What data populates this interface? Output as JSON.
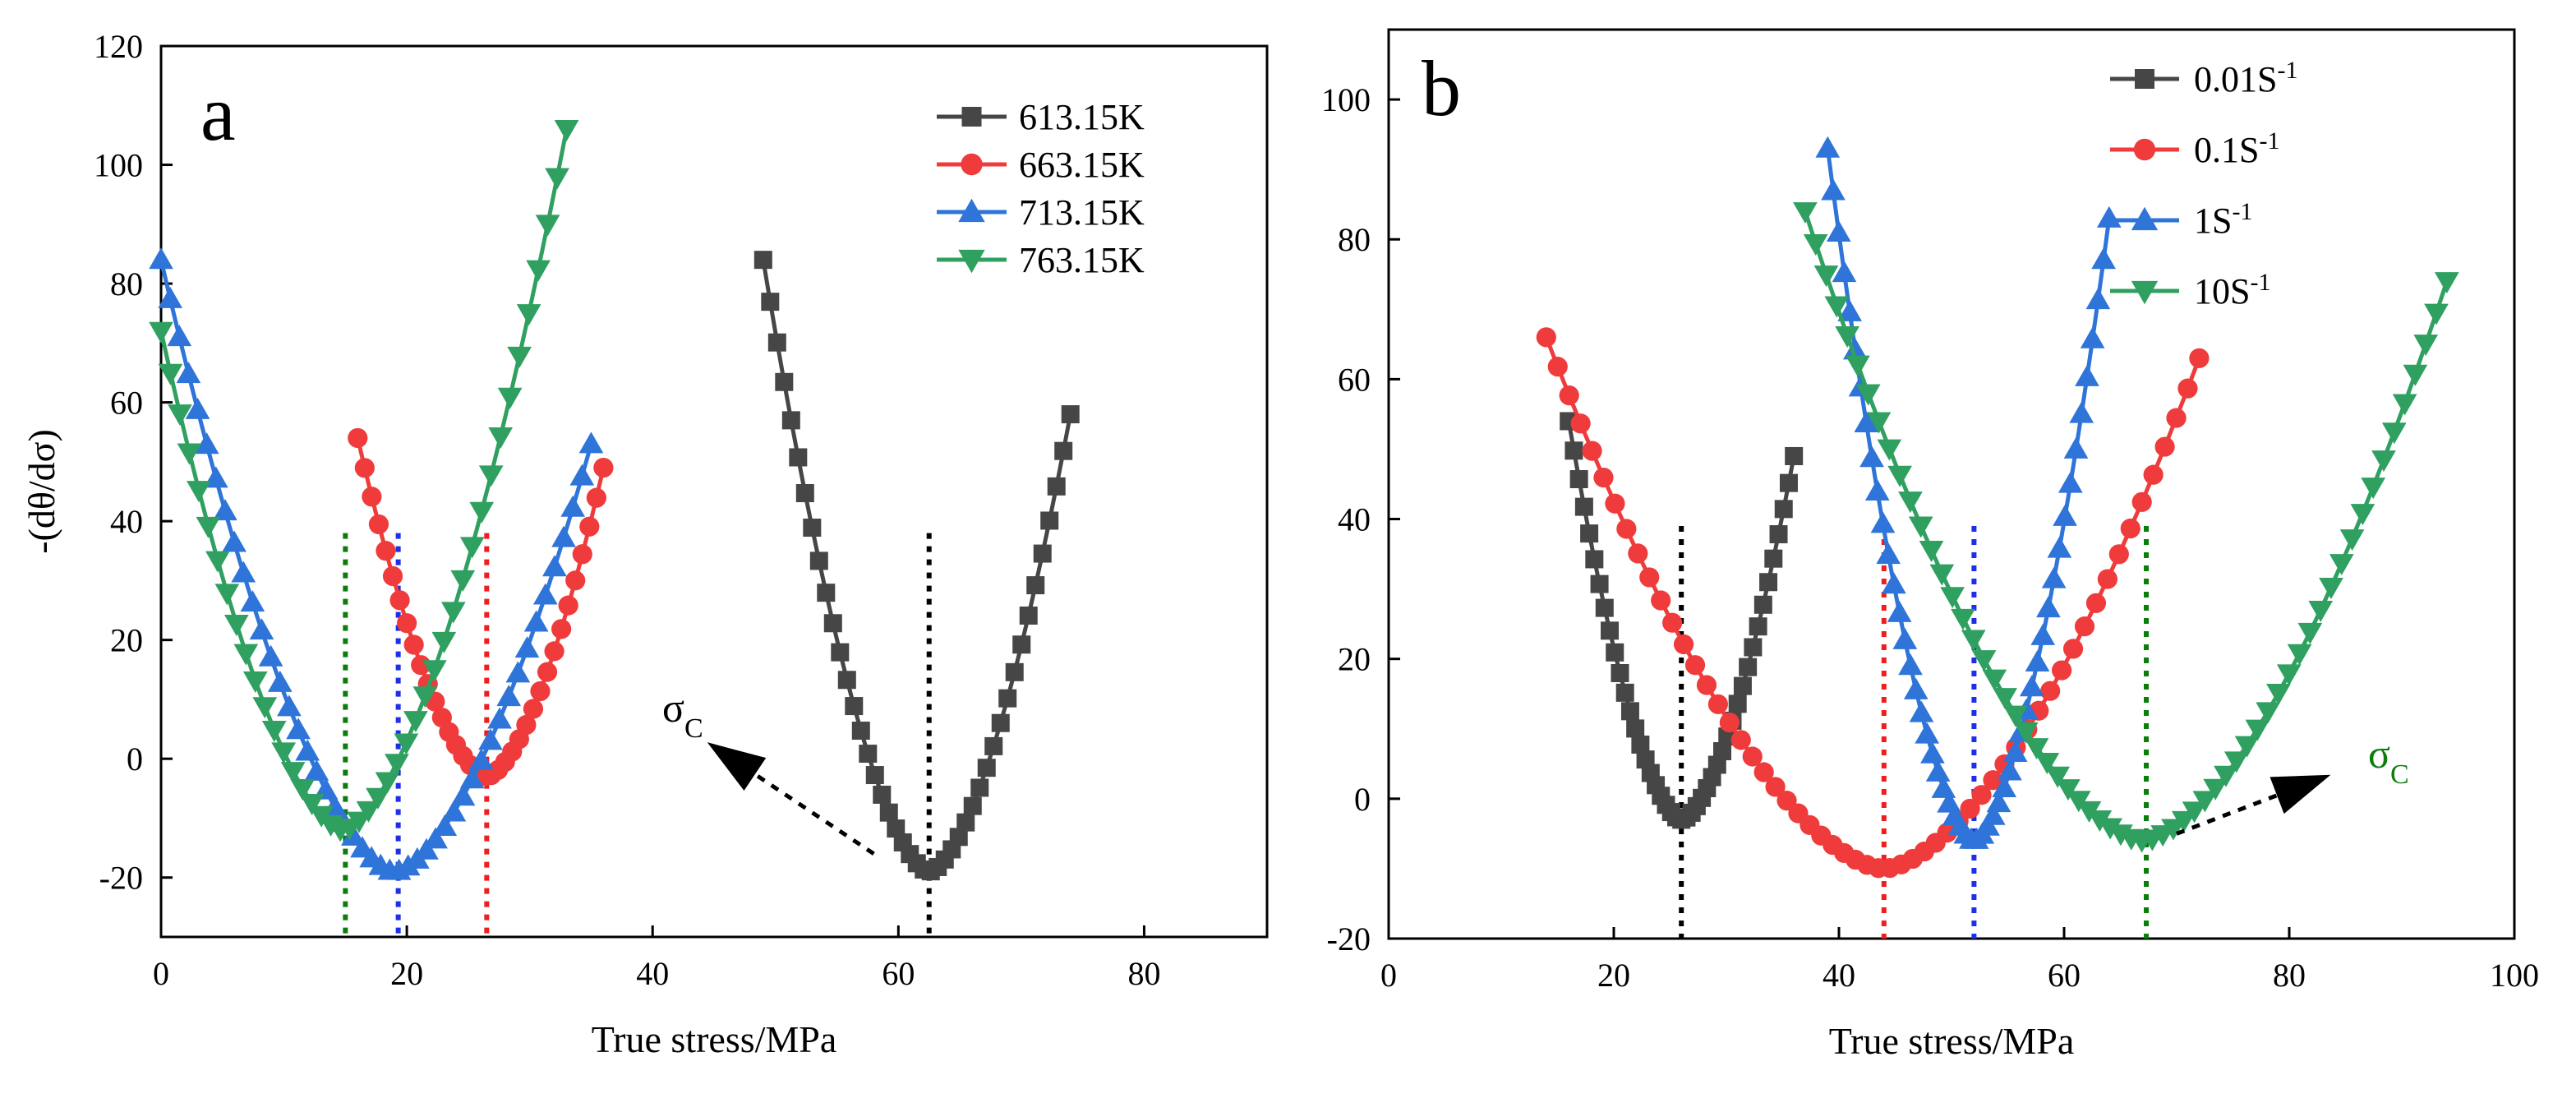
{
  "chart_data": [
    {
      "panel": "a",
      "type": "scatter",
      "title": "",
      "xlabel": "True stress/MPa",
      "ylabel": "-(dθ/dσ)",
      "xlim": [
        0,
        90
      ],
      "ylim": [
        -30,
        120
      ],
      "xticks": [
        0,
        20,
        40,
        60,
        80
      ],
      "yticks": [
        -20,
        0,
        20,
        40,
        60,
        80,
        100,
        120
      ],
      "grid": false,
      "legend_position": "top-right",
      "series": [
        {
          "name": "613.15K",
          "color": "#464646",
          "marker": "square",
          "xmin": 49,
          "xmax": 74,
          "xc": 62.5,
          "ymin": -19,
          "yleft": 84,
          "yright": 58,
          "n": 45
        },
        {
          "name": "663.15K",
          "color": "#ef3b3b",
          "marker": "circle",
          "xmin": 16,
          "xmax": 36,
          "xc": 26.5,
          "ymin": -3,
          "yleft": 54,
          "yright": 49,
          "n": 36
        },
        {
          "name": "713.15K",
          "color": "#2e74d9",
          "marker": "triangle-up",
          "xmin": 0,
          "xmax": 35,
          "xc": 19,
          "ymin": -19,
          "yleft": 84,
          "yright": 53,
          "n": 48
        },
        {
          "name": "763.15K",
          "color": "#2fa060",
          "marker": "triangle-down",
          "xmin": 0,
          "xmax": 33,
          "xc": 14.8,
          "ymin": -12,
          "yleft": 72,
          "yright": 106,
          "n": 44
        }
      ],
      "vlines": [
        {
          "x": 15,
          "color": "#0b7d0b"
        },
        {
          "x": 19.3,
          "color": "#1f2ee8"
        },
        {
          "x": 26.5,
          "color": "#ef1e1e"
        },
        {
          "x": 62.5,
          "color": "#000000"
        }
      ],
      "vline_top": 38,
      "annotation": {
        "text": "σ",
        "sub": "C",
        "color": "#000000",
        "arrow_from": [
          58,
          -16
        ],
        "arrow_to": [
          45,
          2
        ]
      }
    },
    {
      "panel": "b",
      "type": "scatter",
      "title": "",
      "xlabel": "True stress/MPa",
      "ylabel": "",
      "xlim": [
        0,
        100
      ],
      "ylim": [
        -20,
        110
      ],
      "xticks": [
        0,
        20,
        40,
        60,
        80,
        100
      ],
      "yticks": [
        -20,
        0,
        20,
        40,
        60,
        80,
        100
      ],
      "grid": false,
      "legend_position": "top-right",
      "series": [
        {
          "name": "0.01S",
          "sup": "-1",
          "color": "#464646",
          "marker": "square",
          "xmin": 16,
          "xmax": 36,
          "xc": 26,
          "ymin": -3,
          "yleft": 54,
          "yright": 49,
          "n": 45
        },
        {
          "name": "0.1S",
          "sup": "-1",
          "color": "#ef3b3b",
          "marker": "circle",
          "xmin": 14,
          "xmax": 72,
          "xc": 44,
          "ymin": -10,
          "yleft": 66,
          "yright": 63,
          "n": 58
        },
        {
          "name": "1S",
          "sup": "-1",
          "color": "#2e74d9",
          "marker": "triangle-up",
          "xmin": 39,
          "xmax": 64,
          "xc": 52,
          "ymin": -6,
          "yleft": 93,
          "yright": 83,
          "n": 52
        },
        {
          "name": "10S",
          "sup": "-1",
          "color": "#2fa060",
          "marker": "triangle-down",
          "xmin": 37,
          "xmax": 94,
          "xc": 67,
          "ymin": -6,
          "yleft": 84,
          "yright": 74,
          "n": 62
        }
      ],
      "vlines": [
        {
          "x": 26,
          "color": "#000000"
        },
        {
          "x": 44,
          "color": "#ef1e1e"
        },
        {
          "x": 52,
          "color": "#1f2ee8"
        },
        {
          "x": 67.3,
          "color": "#0b7d0b"
        }
      ],
      "vline_top": 39,
      "annotation": {
        "text": "σ",
        "sub": "C",
        "color": "#0b7d0b",
        "arrow_from": [
          70,
          -5
        ],
        "arrow_to": [
          83,
          3
        ]
      }
    }
  ]
}
